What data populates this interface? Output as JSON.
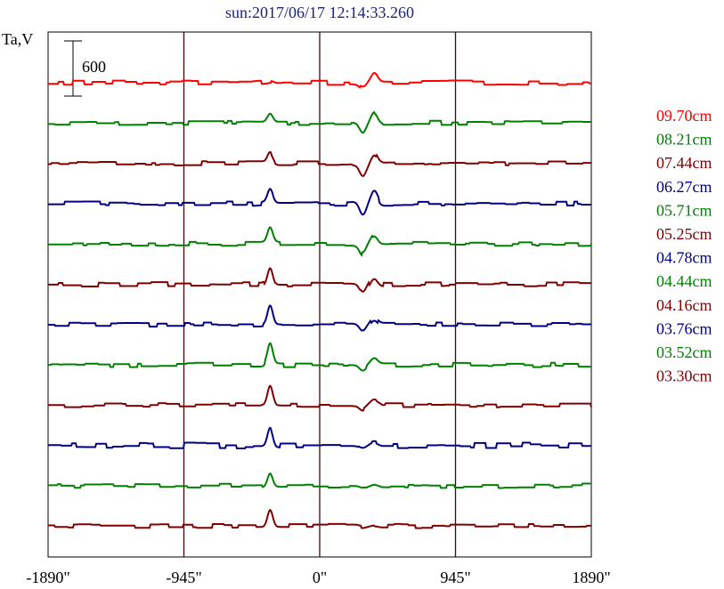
{
  "chart_data": {
    "type": "line",
    "title": "sun:2017/06/17 12:14:33.260",
    "ylabel": "Ta,V",
    "xlim": [
      -1890,
      1890
    ],
    "x_ticks": [
      {
        "value": -1890,
        "label": "-1890\""
      },
      {
        "value": -945,
        "label": "-945\""
      },
      {
        "value": 0,
        "label": "0\""
      },
      {
        "value": 945,
        "label": "945\""
      },
      {
        "value": 1890,
        "label": "1890\""
      }
    ],
    "vgrid": [
      -945,
      0,
      945
    ],
    "scale_bar": {
      "label": "600",
      "value": 600
    },
    "grid": false,
    "legend_position": "right",
    "series": [
      {
        "name": "09.70cm",
        "color": "#ff0000",
        "peaks": [
          [
            -345,
            15
          ],
          [
            -290,
            -10
          ],
          [
            300,
            -52
          ],
          [
            380,
            98
          ]
        ],
        "noise": 3
      },
      {
        "name": "08.21cm",
        "color": "#008000",
        "peaks": [
          [
            -345,
            88
          ],
          [
            300,
            -110
          ],
          [
            380,
            112
          ]
        ],
        "noise": 3
      },
      {
        "name": "07.44cm",
        "color": "#800000",
        "peaks": [
          [
            -345,
            107
          ],
          [
            300,
            -118
          ],
          [
            380,
            108
          ]
        ],
        "noise": 3
      },
      {
        "name": "06.27cm",
        "color": "#000080",
        "peaks": [
          [
            -345,
            142
          ],
          [
            300,
            -140
          ],
          [
            380,
            125
          ]
        ],
        "noise": 3
      },
      {
        "name": "05.71cm",
        "color": "#008000",
        "peaks": [
          [
            -345,
            158
          ],
          [
            300,
            -110
          ],
          [
            380,
            85
          ]
        ],
        "noise": 3
      },
      {
        "name": "05.25cm",
        "color": "#800000",
        "peaks": [
          [
            -345,
            190
          ],
          [
            300,
            -100
          ],
          [
            380,
            80
          ]
        ],
        "noise": 3
      },
      {
        "name": "04.78cm",
        "color": "#000080",
        "peaks": [
          [
            -345,
            205
          ],
          [
            300,
            -80
          ],
          [
            380,
            60
          ]
        ],
        "noise": 3
      },
      {
        "name": "04.44cm",
        "color": "#008000",
        "peaks": [
          [
            -345,
            220
          ],
          [
            300,
            -60
          ],
          [
            380,
            55
          ]
        ],
        "noise": 3
      },
      {
        "name": "04.16cm",
        "color": "#800000",
        "peaks": [
          [
            -345,
            210
          ],
          [
            300,
            -50
          ],
          [
            380,
            45
          ]
        ],
        "noise": 3
      },
      {
        "name": "03.76cm",
        "color": "#000080",
        "peaks": [
          [
            -345,
            200
          ],
          [
            300,
            -30
          ],
          [
            380,
            35
          ]
        ],
        "noise": 4
      },
      {
        "name": "03.52cm",
        "color": "#008000",
        "peaks": [
          [
            -345,
            150
          ],
          [
            300,
            -20
          ],
          [
            380,
            20
          ]
        ],
        "noise": 3
      },
      {
        "name": "03.30cm",
        "color": "#800000",
        "peaks": [
          [
            -345,
            185
          ],
          [
            300,
            -15
          ],
          [
            380,
            12
          ]
        ],
        "noise": 3
      }
    ]
  }
}
